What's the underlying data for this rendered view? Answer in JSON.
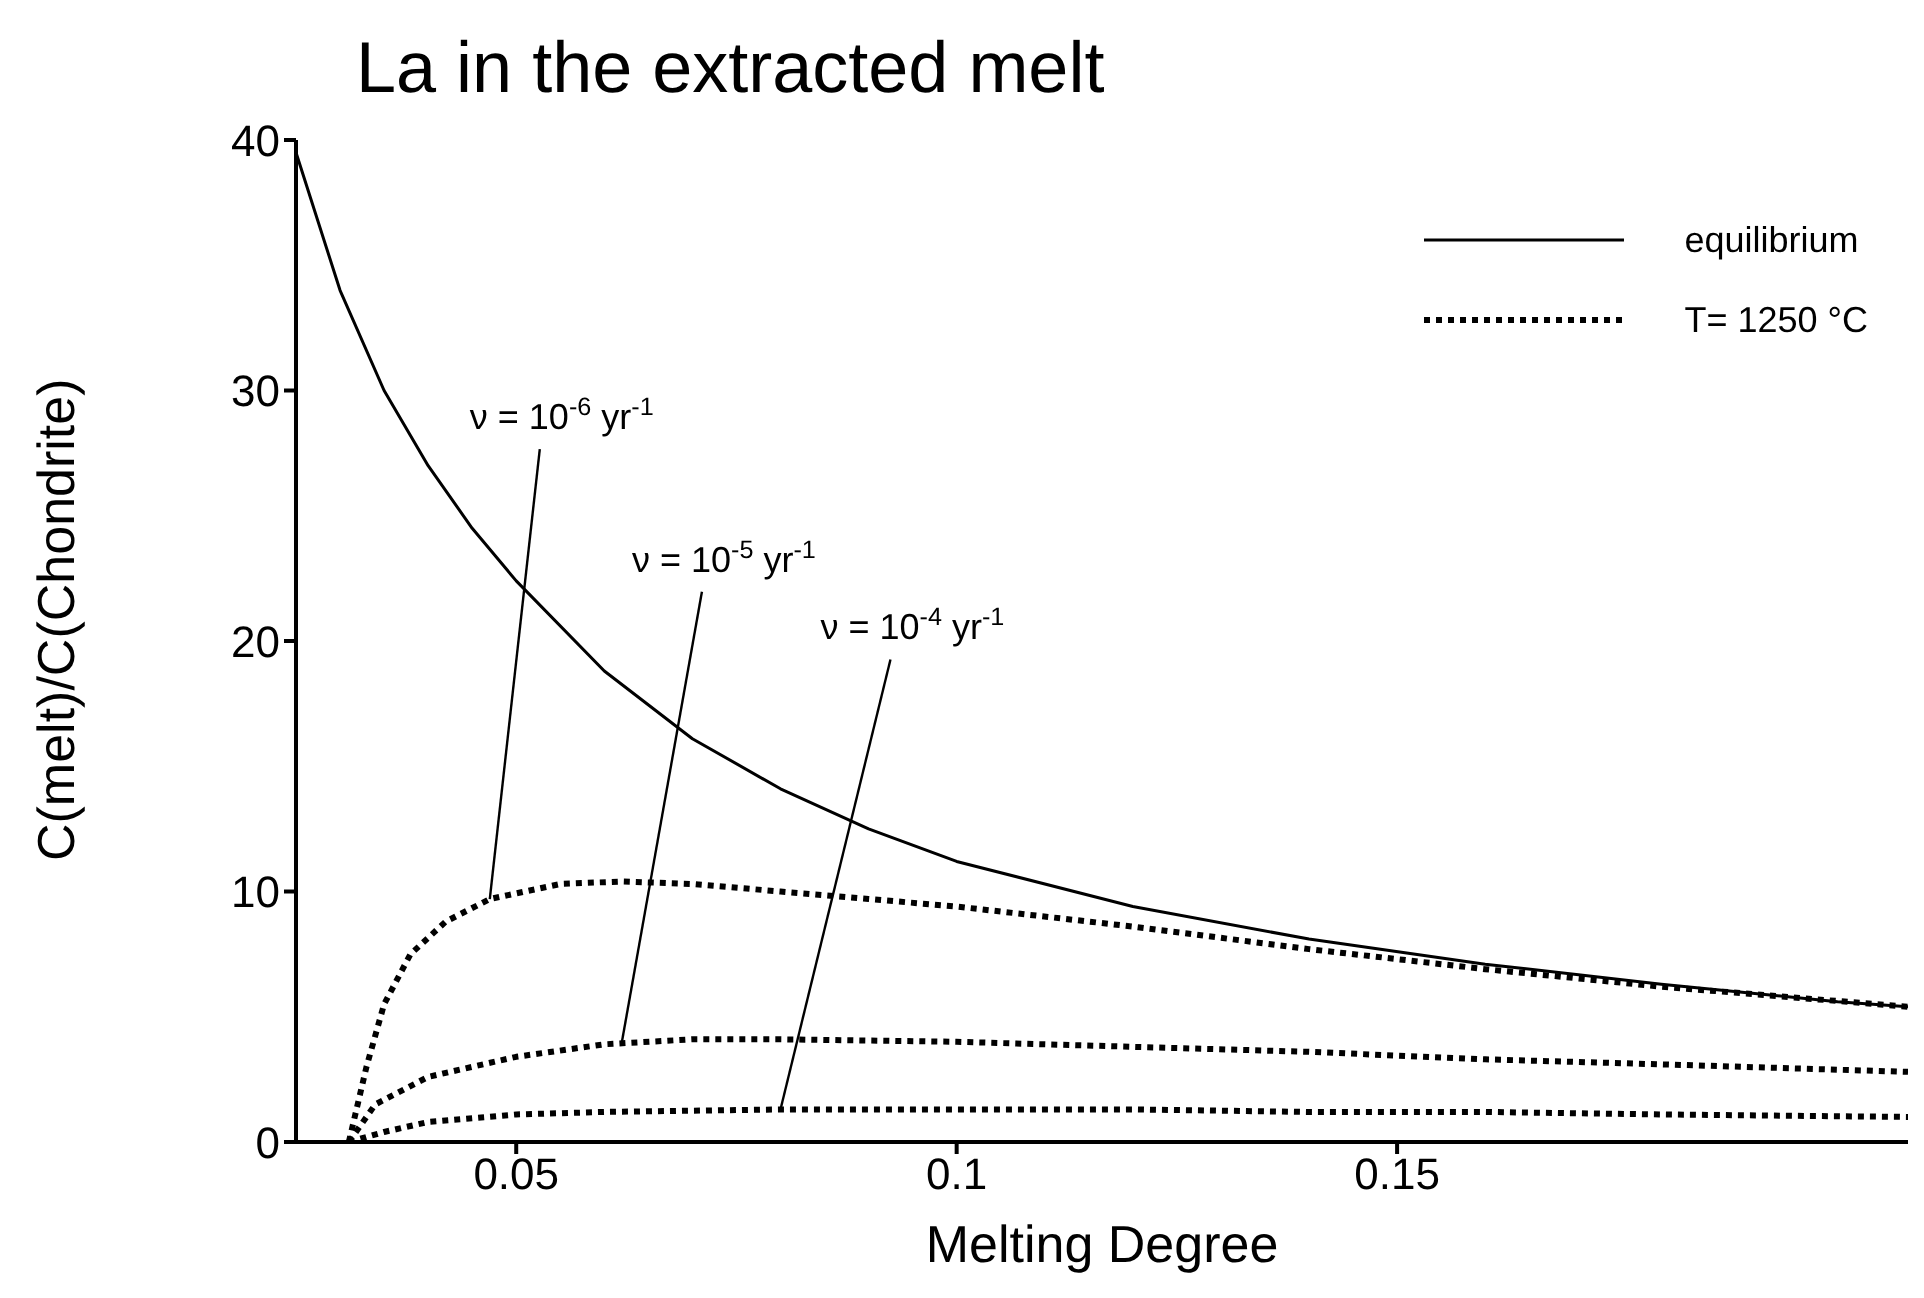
{
  "chart_data": {
    "type": "line",
    "title": "La in the extracted melt",
    "xlabel": "Melting Degree",
    "ylabel": "C(melt)/C(Chondrite)",
    "xlim": [
      0.025,
      0.208
    ],
    "xticks": [
      0.05,
      0.1,
      0.15
    ],
    "ylim": [
      0,
      40
    ],
    "yticks": [
      0,
      10,
      20,
      30,
      40
    ],
    "grid": false,
    "legend": "top right",
    "marker": "none",
    "series": [
      {
        "name": "equilibrium",
        "color": "#000000",
        "line_style": "solid",
        "x": [
          0.025,
          0.03,
          0.035,
          0.04,
          0.045,
          0.05,
          0.06,
          0.07,
          0.08,
          0.09,
          0.1,
          0.12,
          0.14,
          0.16,
          0.18,
          0.2,
          0.208
        ],
        "values": [
          39.5,
          34,
          30,
          27,
          24.5,
          22.4,
          18.8,
          16.1,
          14.1,
          12.5,
          11.2,
          9.4,
          8.1,
          7.1,
          6.3,
          5.6,
          5.4
        ]
      },
      {
        "color": "#000000",
        "line_style": "dotted",
        "x": [
          0.031,
          0.033,
          0.035,
          0.038,
          0.042,
          0.047,
          0.055,
          0.062,
          0.07,
          0.08,
          0.09,
          0.1,
          0.12,
          0.14,
          0.16,
          0.18,
          0.208
        ],
        "values": [
          0,
          3,
          5.5,
          7.5,
          8.8,
          9.7,
          10.3,
          10.4,
          10.3,
          10,
          9.7,
          9.4,
          8.6,
          7.7,
          6.9,
          6.2,
          5.4
        ]
      },
      {
        "color": "#000000",
        "line_style": "dotted",
        "x": [
          0.031,
          0.034,
          0.04,
          0.05,
          0.06,
          0.07,
          0.08,
          0.1,
          0.12,
          0.14,
          0.16,
          0.18,
          0.208
        ],
        "values": [
          0,
          1.5,
          2.6,
          3.4,
          3.9,
          4.1,
          4.1,
          4,
          3.8,
          3.6,
          3.3,
          3.1,
          2.8
        ]
      },
      {
        "color": "#000000",
        "line_style": "dotted",
        "x": [
          0.031,
          0.035,
          0.04,
          0.05,
          0.06,
          0.08,
          0.1,
          0.12,
          0.14,
          0.16,
          0.18,
          0.208
        ],
        "values": [
          0,
          0.4,
          0.8,
          1.1,
          1.2,
          1.3,
          1.3,
          1.3,
          1.2,
          1.2,
          1.1,
          1
        ]
      }
    ],
    "annotations": [
      "T= 1250 °C",
      {
        "text": "ν  = 10$^{-6}$ yr$^{-1}$",
        "x": 0.047,
        "y": 9.7
      },
      {
        "text": "ν  = 10$^{-5}$ yr$^{-1}$",
        "x": 0.062,
        "y": 4
      },
      {
        "text": "ν  = 10$^{-4}$ yr$^{-1}$",
        "x": 0.08,
        "y": 1.3
      }
    ]
  }
}
